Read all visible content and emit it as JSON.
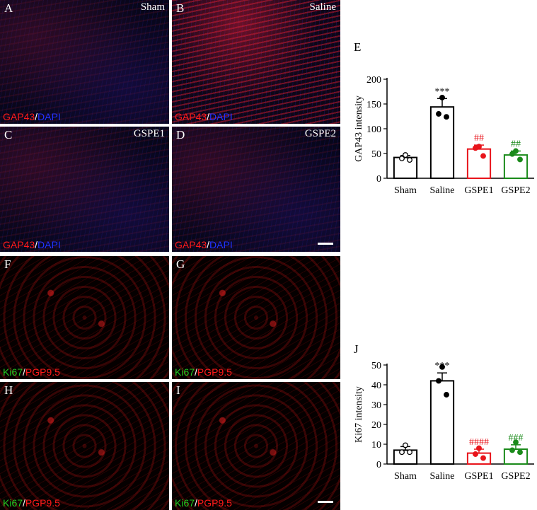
{
  "panels": [
    {
      "id": "A",
      "condition": "Sham",
      "stain_a": "GAP43",
      "sep": "/",
      "stain_b": "DAPI"
    },
    {
      "id": "B",
      "condition": "Saline",
      "stain_a": "GAP43",
      "sep": "/",
      "stain_b": "DAPI"
    },
    {
      "id": "C",
      "condition": "GSPE1",
      "stain_a": "GAP43",
      "sep": "/",
      "stain_b": "DAPI"
    },
    {
      "id": "D",
      "condition": "GSPE2",
      "stain_a": "GAP43",
      "sep": "/",
      "stain_b": "DAPI"
    },
    {
      "id": "F",
      "condition": "",
      "stain_a": "Ki67",
      "sep": "/",
      "stain_b": "PGP9.5"
    },
    {
      "id": "G",
      "condition": "",
      "stain_a": "Ki67",
      "sep": "/",
      "stain_b": "PGP9.5"
    },
    {
      "id": "H",
      "condition": "",
      "stain_a": "Ki67",
      "sep": "/",
      "stain_b": "PGP9.5"
    },
    {
      "id": "I",
      "condition": "",
      "stain_a": "Ki67",
      "sep": "/",
      "stain_b": "PGP9.5"
    }
  ],
  "chart_data": [
    {
      "panel": "E",
      "type": "bar",
      "ylabel": "GAP43 intensity",
      "ylim": [
        0,
        200
      ],
      "yticks": [
        0,
        50,
        100,
        150,
        200
      ],
      "categories": [
        "Sham",
        "Saline",
        "GSPE1",
        "GSPE2"
      ],
      "values": [
        42,
        144,
        59,
        47
      ],
      "errors": [
        4,
        17,
        8,
        8
      ],
      "points": [
        [
          47,
          40,
          37
        ],
        [
          163,
          130,
          124
        ],
        [
          64,
          61,
          45
        ],
        [
          55,
          49,
          38
        ]
      ],
      "annotations": [
        "",
        "***",
        "##",
        "##"
      ],
      "colors": [
        "#000000",
        "#000000",
        "#e8141b",
        "#1a8a1a"
      ],
      "hollow": [
        true,
        false,
        false,
        false
      ]
    },
    {
      "panel": "J",
      "type": "bar",
      "ylabel": "Ki67 intensity",
      "ylim": [
        0,
        50
      ],
      "yticks": [
        0,
        10,
        20,
        30,
        40,
        50
      ],
      "categories": [
        "Sham",
        "Saline",
        "GSPE1",
        "GSPE2"
      ],
      "values": [
        7,
        42,
        5.5,
        7.5
      ],
      "errors": [
        1.8,
        4,
        2,
        2.2
      ],
      "points": [
        [
          9.5,
          6,
          6
        ],
        [
          49,
          42,
          35
        ],
        [
          8,
          5,
          3
        ],
        [
          11,
          7,
          6
        ]
      ],
      "annotations": [
        "",
        "***",
        "####",
        "###"
      ],
      "colors": [
        "#000000",
        "#000000",
        "#e8141b",
        "#1a8a1a"
      ],
      "hollow": [
        true,
        false,
        false,
        false
      ]
    }
  ]
}
